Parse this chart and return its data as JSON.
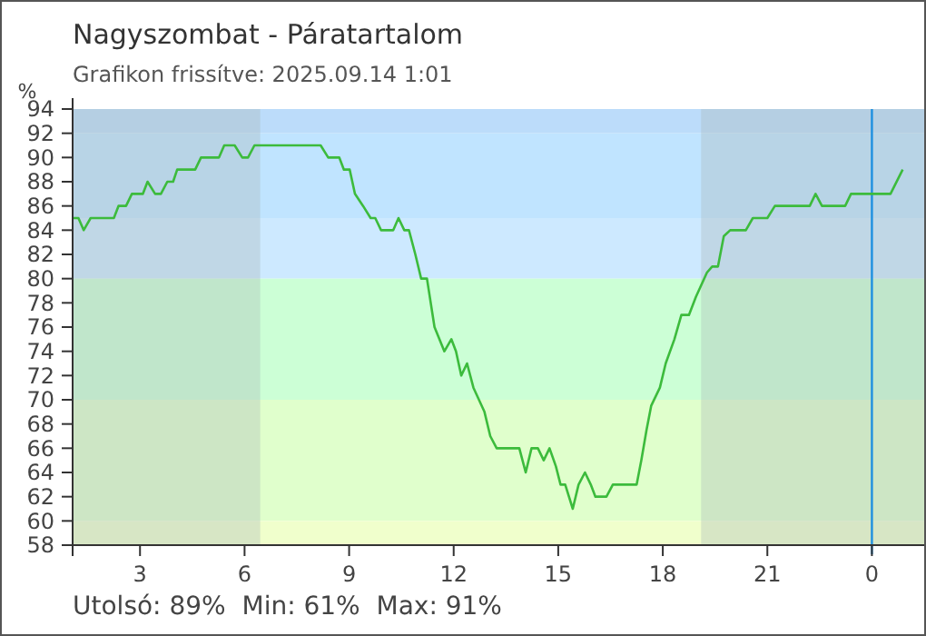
{
  "chart_data": {
    "type": "line",
    "title": "Nagyszombat - Páratartalom",
    "subtitle": "Grafikon frissítve: 2025.09.14 1:01",
    "ylabel": "%",
    "annotations": [
      "Utolsó: 89%  Min: 61%  Max: 91%"
    ],
    "xlim": [
      "2025-09-13T01:04",
      "2025-09-14T01:30"
    ],
    "xticks": [
      {
        "value": "2025-09-13T03:00",
        "label": "3"
      },
      {
        "value": "2025-09-13T06:00",
        "label": "6"
      },
      {
        "value": "2025-09-13T09:00",
        "label": "9"
      },
      {
        "value": "2025-09-13T12:00",
        "label": "12"
      },
      {
        "value": "2025-09-13T15:00",
        "label": "15"
      },
      {
        "value": "2025-09-13T18:00",
        "label": "18"
      },
      {
        "value": "2025-09-13T21:00",
        "label": "21"
      },
      {
        "value": "2025-09-14T00:00",
        "label": "0"
      }
    ],
    "ylim": [
      58,
      94
    ],
    "yticks": [
      58,
      60,
      62,
      64,
      66,
      68,
      70,
      72,
      74,
      76,
      78,
      80,
      82,
      84,
      86,
      88,
      90,
      92,
      94
    ],
    "grid": false,
    "marker": "none",
    "line_style": "solid",
    "bands": [
      {
        "axis": "y",
        "from": 92,
        "to": 94,
        "color": "#bcdcfa"
      },
      {
        "axis": "y",
        "from": 85,
        "to": 92,
        "color": "#c0e4ff"
      },
      {
        "axis": "y",
        "from": 80,
        "to": 85,
        "color": "#cde9ff"
      },
      {
        "axis": "y",
        "from": 70,
        "to": 80,
        "color": "#ccffd6"
      },
      {
        "axis": "y",
        "from": 60,
        "to": 70,
        "color": "#e0ffcc"
      },
      {
        "axis": "y",
        "from": 58,
        "to": 60,
        "color": "#f0ffcc"
      },
      {
        "axis": "x",
        "from": "2025-09-13T01:04",
        "to": "2025-09-13T06:27",
        "color": "#a8b8b8"
      },
      {
        "axis": "x",
        "from": "2025-09-13T19:06",
        "to": "2025-09-14T01:30",
        "color": "#a8b8b8"
      }
    ],
    "ref_lines": [
      {
        "axis": "x",
        "value": "2025-09-14T00:00",
        "color": "#1e90e0"
      }
    ],
    "series": [
      {
        "color": "#3cbb3c",
        "x": [
          "2025-09-13T01:04",
          "2025-09-13T01:14",
          "2025-09-13T01:23",
          "2025-09-13T01:35",
          "2025-09-13T02:15",
          "2025-09-13T02:23",
          "2025-09-13T02:36",
          "2025-09-13T02:46",
          "2025-09-13T03:05",
          "2025-09-13T03:13",
          "2025-09-13T03:26",
          "2025-09-13T03:36",
          "2025-09-13T03:47",
          "2025-09-13T03:57",
          "2025-09-13T04:04",
          "2025-09-13T04:35",
          "2025-09-13T04:45",
          "2025-09-13T05:16",
          "2025-09-13T05:25",
          "2025-09-13T05:43",
          "2025-09-13T05:56",
          "2025-09-13T06:06",
          "2025-09-13T06:17",
          "2025-09-13T08:11",
          "2025-09-13T08:24",
          "2025-09-13T08:43",
          "2025-09-13T08:51",
          "2025-09-13T09:01",
          "2025-09-13T09:10",
          "2025-09-13T09:24",
          "2025-09-13T09:37",
          "2025-09-13T09:45",
          "2025-09-13T09:55",
          "2025-09-13T10:16",
          "2025-09-13T10:25",
          "2025-09-13T10:35",
          "2025-09-13T10:43",
          "2025-09-13T10:54",
          "2025-09-13T11:04",
          "2025-09-13T11:14",
          "2025-09-13T11:27",
          "2025-09-13T11:44",
          "2025-09-13T11:56",
          "2025-09-13T12:04",
          "2025-09-13T12:13",
          "2025-09-13T12:23",
          "2025-09-13T12:34",
          "2025-09-13T12:53",
          "2025-09-13T13:03",
          "2025-09-13T13:14",
          "2025-09-13T13:53",
          "2025-09-13T14:04",
          "2025-09-13T14:14",
          "2025-09-13T14:25",
          "2025-09-13T14:35",
          "2025-09-13T14:45",
          "2025-09-13T14:56",
          "2025-09-13T15:04",
          "2025-09-13T15:12",
          "2025-09-13T15:25",
          "2025-09-13T15:35",
          "2025-09-13T15:46",
          "2025-09-13T15:56",
          "2025-09-13T16:04",
          "2025-09-13T16:23",
          "2025-09-13T16:34",
          "2025-09-13T17:15",
          "2025-09-13T17:23",
          "2025-09-13T17:32",
          "2025-09-13T17:40",
          "2025-09-13T17:55",
          "2025-09-13T18:05",
          "2025-09-13T18:20",
          "2025-09-13T18:32",
          "2025-09-13T18:45",
          "2025-09-13T18:57",
          "2025-09-13T19:16",
          "2025-09-13T19:25",
          "2025-09-13T19:35",
          "2025-09-13T19:45",
          "2025-09-13T19:56",
          "2025-09-13T20:23",
          "2025-09-13T20:35",
          "2025-09-13T21:00",
          "2025-09-13T21:13",
          "2025-09-13T22:13",
          "2025-09-13T22:23",
          "2025-09-13T22:34",
          "2025-09-13T23:14",
          "2025-09-13T23:24",
          "2025-09-14T00:32",
          "2025-09-14T00:53"
        ],
        "values": [
          85,
          85,
          84,
          85,
          85,
          86,
          86,
          87,
          87,
          88,
          87,
          87,
          88,
          88,
          89,
          89,
          90,
          90,
          91,
          91,
          90,
          90,
          91,
          91,
          90,
          90,
          89,
          89,
          87,
          86,
          85,
          85,
          84,
          84,
          85,
          84,
          84,
          82,
          80,
          80,
          76,
          74,
          75,
          74,
          72,
          73,
          71,
          69,
          67,
          66,
          66,
          64,
          66,
          66,
          65,
          66,
          64.5,
          63,
          63,
          61,
          63,
          64,
          63,
          62,
          62,
          63,
          63,
          65,
          67.5,
          69.5,
          71,
          73,
          75,
          77,
          77,
          78.5,
          80.5,
          81,
          81,
          83.5,
          84,
          84,
          85,
          85,
          86,
          86,
          87,
          86,
          86,
          87,
          87,
          89
        ]
      }
    ]
  }
}
